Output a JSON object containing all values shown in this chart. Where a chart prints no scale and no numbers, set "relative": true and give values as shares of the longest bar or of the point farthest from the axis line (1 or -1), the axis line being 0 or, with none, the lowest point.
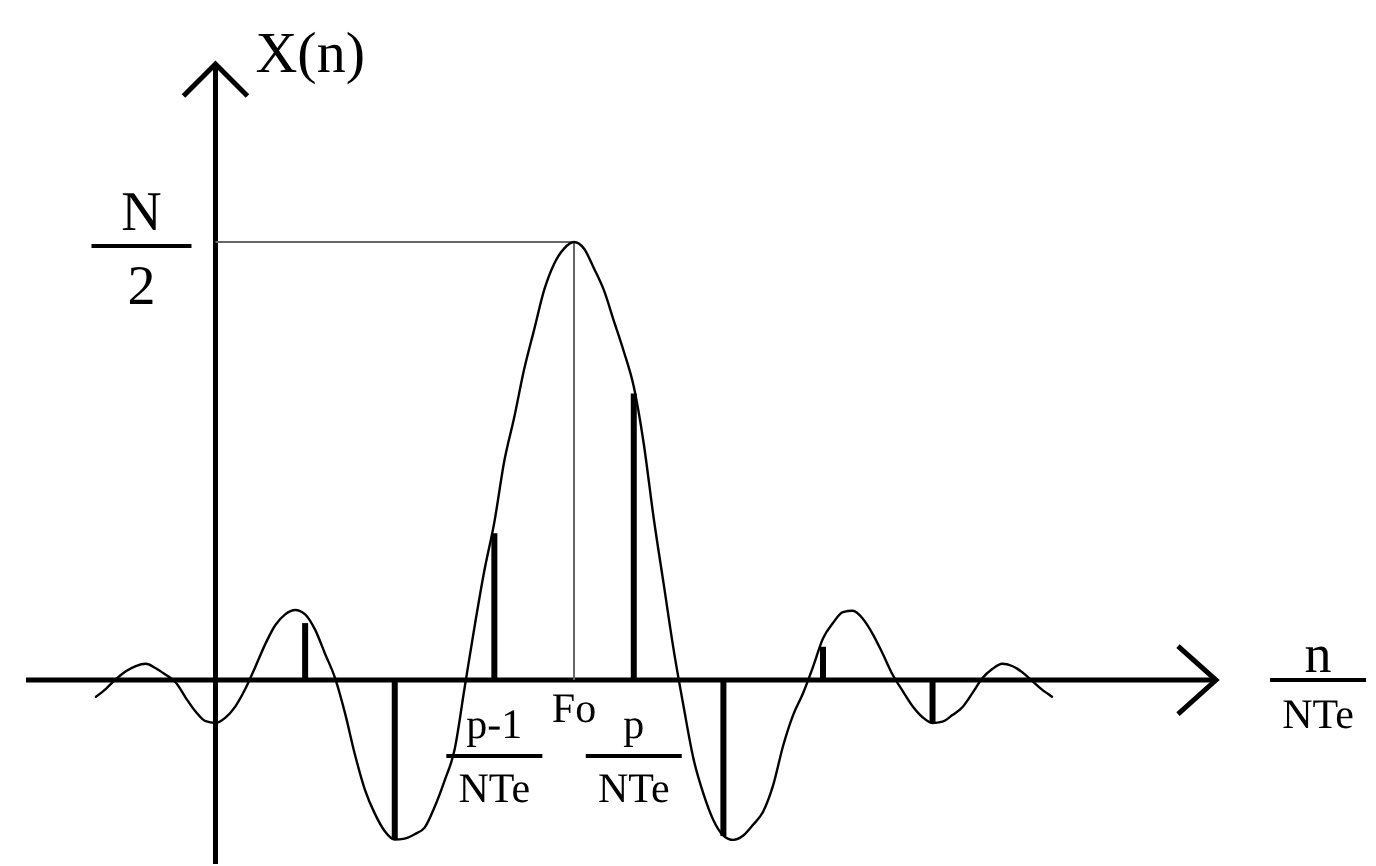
{
  "chart_data": {
    "type": "line",
    "relative": true,
    "tick_labels": "x",
    "ylabel": "X(n)",
    "xlabel": "n\nNTe",
    "categories": [
      null,
      null,
      null,
      null,
      null,
      null,
      null,
      null,
      null,
      null,
      null,
      null,
      null,
      null,
      null,
      null,
      null,
      null,
      null,
      null,
      null,
      null,
      null,
      null,
      null,
      null,
      null,
      null,
      null,
      null,
      null,
      null,
      null,
      null,
      null,
      null,
      null,
      null,
      null,
      null,
      "p-1\nNTe",
      null,
      null,
      null,
      null,
      null,
      null,
      null,
      "Fo",
      null,
      null,
      null,
      null,
      null,
      "p\nNTe",
      null,
      null,
      null,
      null,
      null,
      null,
      null,
      null,
      null,
      null,
      null,
      null,
      null,
      null,
      null,
      null,
      null,
      null,
      null,
      null,
      null,
      null,
      null,
      null,
      null,
      null,
      null,
      null,
      null,
      null,
      null,
      null,
      null,
      null,
      null,
      null,
      null,
      null,
      null,
      null,
      null,
      null
    ],
    "series": [
      {
        "color": "#000000",
        "values": [
          -0.038,
          -0.02,
          0.002,
          0.02,
          0.032,
          0.037,
          0.027,
          0.012,
          -0.005,
          -0.04,
          -0.072,
          -0.094,
          -0.098,
          -0.086,
          -0.06,
          -0.02,
          0.03,
          0.082,
          0.125,
          0.15,
          0.16,
          0.15,
          0.115,
          0.06,
          0.005,
          -0.075,
          -0.17,
          -0.25,
          -0.305,
          -0.345,
          -0.364,
          -0.362,
          -0.352,
          -0.337,
          -0.29,
          -0.23,
          -0.16,
          -0.02,
          0.12,
          0.25,
          0.36,
          0.5,
          0.6,
          0.71,
          0.8,
          0.89,
          0.95,
          0.985,
          1,
          0.985,
          0.94,
          0.89,
          0.82,
          0.75,
          0.67,
          0.54,
          0.37,
          0.22,
          0.07,
          -0.06,
          -0.18,
          -0.26,
          -0.32,
          -0.355,
          -0.365,
          -0.355,
          -0.33,
          -0.3,
          -0.24,
          -0.15,
          -0.08,
          -0.03,
          0.03,
          0.095,
          0.13,
          0.155,
          0.158,
          0.14,
          0.105,
          0.06,
          0.012,
          -0.025,
          -0.06,
          -0.085,
          -0.098,
          -0.095,
          -0.08,
          -0.062,
          -0.03,
          0.004,
          0.025,
          0.037,
          0.032,
          0.018,
          -0.002,
          -0.022,
          -0.038
        ]
      },
      {
        "type": "bar",
        "color": "#000000",
        "values": [
          null,
          null,
          null,
          null,
          null,
          null,
          null,
          null,
          null,
          null,
          null,
          null,
          null,
          null,
          null,
          null,
          null,
          null,
          null,
          null,
          null,
          0.13,
          null,
          null,
          null,
          null,
          null,
          null,
          null,
          null,
          -0.365,
          null,
          null,
          null,
          null,
          null,
          null,
          null,
          null,
          null,
          0.335,
          null,
          null,
          null,
          null,
          null,
          null,
          null,
          null,
          null,
          null,
          null,
          null,
          null,
          0.654,
          null,
          null,
          null,
          null,
          null,
          null,
          null,
          null,
          -0.356,
          null,
          null,
          null,
          null,
          null,
          null,
          null,
          null,
          null,
          0.076,
          null,
          null,
          null,
          null,
          null,
          null,
          null,
          null,
          null,
          null,
          -0.099,
          null,
          null,
          null,
          null,
          null,
          null,
          null,
          null,
          null,
          null,
          null,
          null
        ]
      }
    ],
    "ref_lines": [
      {
        "axis": "y",
        "value": 1,
        "label": "N\n2",
        "color": "#666666"
      },
      {
        "axis": "x",
        "value": "Fo",
        "color": "#666666"
      }
    ]
  }
}
